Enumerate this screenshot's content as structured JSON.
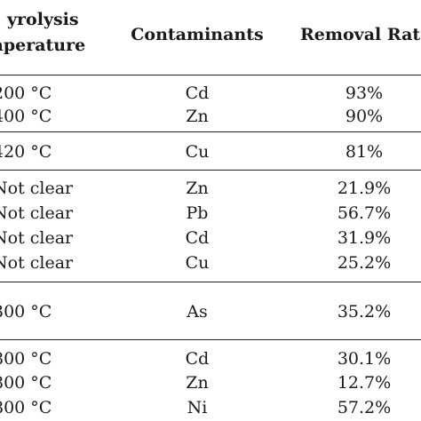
{
  "header": {
    "col1_line1": "yrolysis",
    "col1_line2": "nperature",
    "col2": "Contaminants",
    "col3": "Removal Rat"
  },
  "rows": [
    {
      "temp": "200 °C",
      "contaminant": "Cd",
      "rate": "93%"
    },
    {
      "temp": "400 °C",
      "contaminant": "Zn",
      "rate": "90%"
    },
    {
      "temp": "420 °C",
      "contaminant": "Cu",
      "rate": "81%"
    },
    {
      "temp": "Not clear",
      "contaminant": "Zn",
      "rate": "21.9%"
    },
    {
      "temp": "Not clear",
      "contaminant": "Pb",
      "rate": "56.7%"
    },
    {
      "temp": "Not clear",
      "contaminant": "Cd",
      "rate": "31.9%"
    },
    {
      "temp": "Not clear",
      "contaminant": "Cu",
      "rate": "25.2%"
    },
    {
      "temp": "300 °C",
      "contaminant": "As",
      "rate": "35.2%"
    },
    {
      "temp": "800 °C",
      "contaminant": "Cd",
      "rate": "30.1%"
    },
    {
      "temp": "800 °C",
      "contaminant": "Zn",
      "rate": "12.7%"
    },
    {
      "temp": "800 °C",
      "contaminant": "Ni",
      "rate": "57.2%"
    }
  ]
}
